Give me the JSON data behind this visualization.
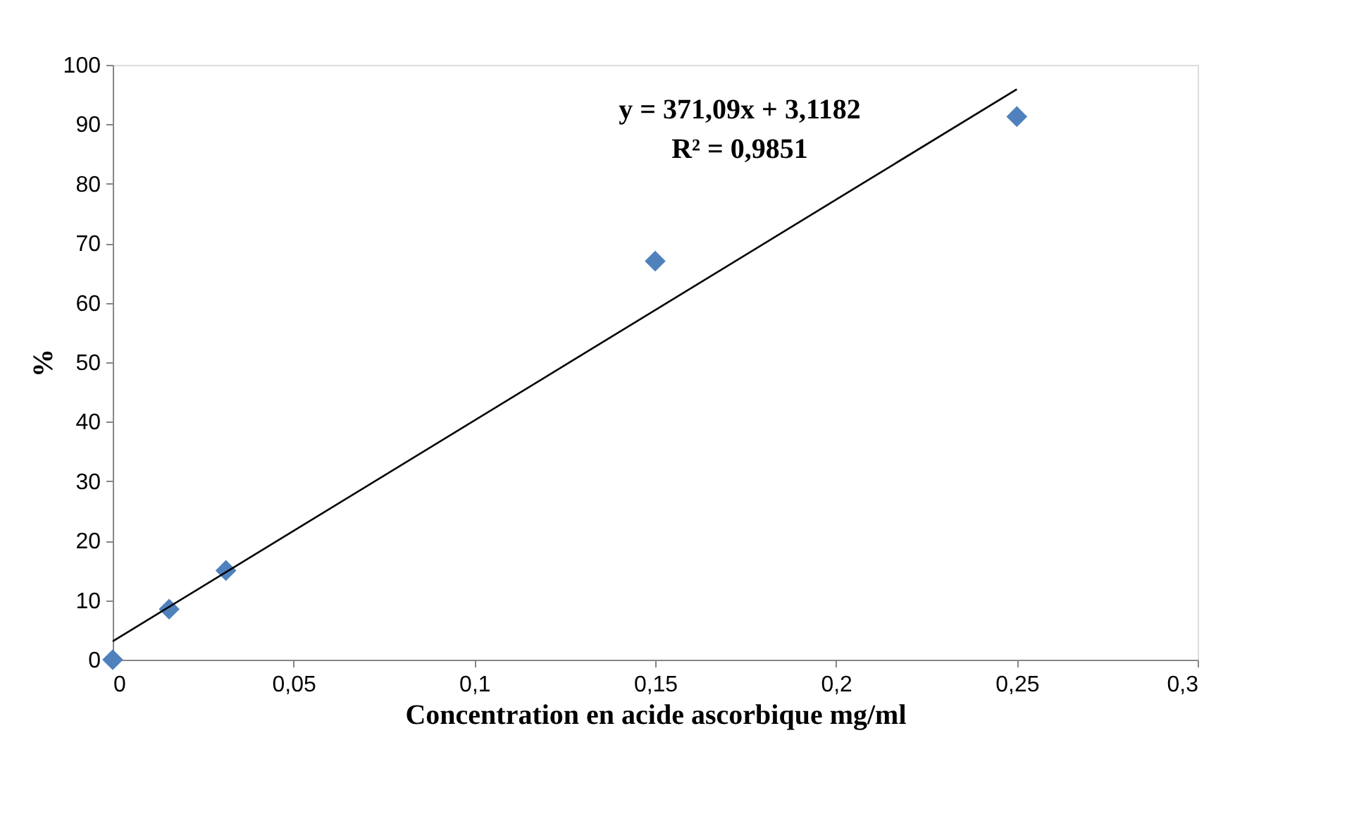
{
  "chart_data": {
    "type": "scatter",
    "xlabel": "Concentration en acide ascorbique mg/ml",
    "ylabel": "%",
    "xlim": [
      0,
      0.3
    ],
    "xticks": [
      0,
      {
        "value": 0.05,
        "label": "0,05"
      },
      {
        "value": 0.1,
        "label": "0,1"
      },
      {
        "value": 0.15,
        "label": "0,15"
      },
      {
        "value": 0.2,
        "label": "0,2"
      },
      {
        "value": 0.25,
        "label": "0,25"
      },
      {
        "value": 0.3,
        "label": "0,3"
      }
    ],
    "ylim": [
      0,
      100
    ],
    "yticks": [
      0,
      10,
      20,
      30,
      40,
      50,
      60,
      70,
      80,
      90,
      100
    ],
    "series": [
      {
        "color": "#4f81bd",
        "x": [
          0,
          0.0156,
          0.0313,
          0.15,
          0.25
        ],
        "values": [
          0,
          8.5,
          15,
          67,
          91.3
        ],
        "marker": "diamond"
      },
      {
        "type": "line",
        "color": "#000000",
        "x": [
          0,
          0.25
        ],
        "values": [
          3.1,
          95.9
        ],
        "line_style": "solid"
      }
    ],
    "annotations": [
      "y = 371,09x + 3,1182",
      "R² = 0,9851"
    ],
    "grid": false
  }
}
